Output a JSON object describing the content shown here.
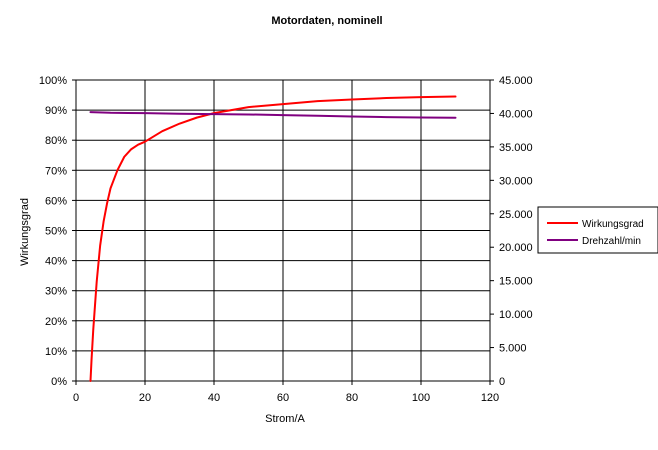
{
  "chart_data": {
    "type": "line",
    "title": "Motordaten, nominell",
    "xlabel": "Strom/A",
    "ylabel": "Wirkungsgrad",
    "y2label": "",
    "xlim": [
      0,
      120
    ],
    "ylim": [
      0,
      1.0
    ],
    "y2lim": [
      0,
      45000
    ],
    "x_ticks": [
      0,
      20,
      40,
      60,
      80,
      100,
      120
    ],
    "x_tick_labels": [
      "0",
      "20",
      "40",
      "60",
      "80",
      "100",
      "120"
    ],
    "y_ticks": [
      0,
      0.1,
      0.2,
      0.3,
      0.4,
      0.5,
      0.6,
      0.7,
      0.8,
      0.9,
      1.0
    ],
    "y_tick_labels": [
      "0%",
      "10%",
      "20%",
      "30%",
      "40%",
      "50%",
      "60%",
      "70%",
      "80%",
      "90%",
      "100%"
    ],
    "y2_ticks": [
      0,
      5000,
      10000,
      15000,
      20000,
      25000,
      30000,
      35000,
      40000,
      45000
    ],
    "y2_tick_labels": [
      "0",
      "5.000",
      "10.000",
      "15.000",
      "20.000",
      "25.000",
      "30.000",
      "35.000",
      "40.000",
      "45.000"
    ],
    "grid": true,
    "legend_position": "right",
    "series": [
      {
        "name": "Wirkungsgrad",
        "axis": "left",
        "color": "#ff0000",
        "x": [
          4.2,
          4.5,
          5,
          5.5,
          6,
          7,
          8,
          9,
          10,
          12,
          14,
          16,
          18,
          20,
          25,
          30,
          35,
          40,
          45,
          50,
          60,
          70,
          80,
          90,
          100,
          110
        ],
        "y": [
          0.0,
          0.07,
          0.17,
          0.25,
          0.33,
          0.45,
          0.53,
          0.59,
          0.64,
          0.7,
          0.745,
          0.77,
          0.785,
          0.795,
          0.83,
          0.855,
          0.875,
          0.89,
          0.9,
          0.91,
          0.92,
          0.93,
          0.935,
          0.94,
          0.943,
          0.945
        ]
      },
      {
        "name": "Drehzahl/min",
        "axis": "right",
        "color": "#800080",
        "x": [
          4.2,
          10,
          20,
          30,
          40,
          50,
          60,
          70,
          80,
          90,
          100,
          110
        ],
        "y": [
          40200,
          40100,
          40050,
          39950,
          39900,
          39850,
          39750,
          39650,
          39550,
          39450,
          39400,
          39350
        ]
      }
    ]
  }
}
